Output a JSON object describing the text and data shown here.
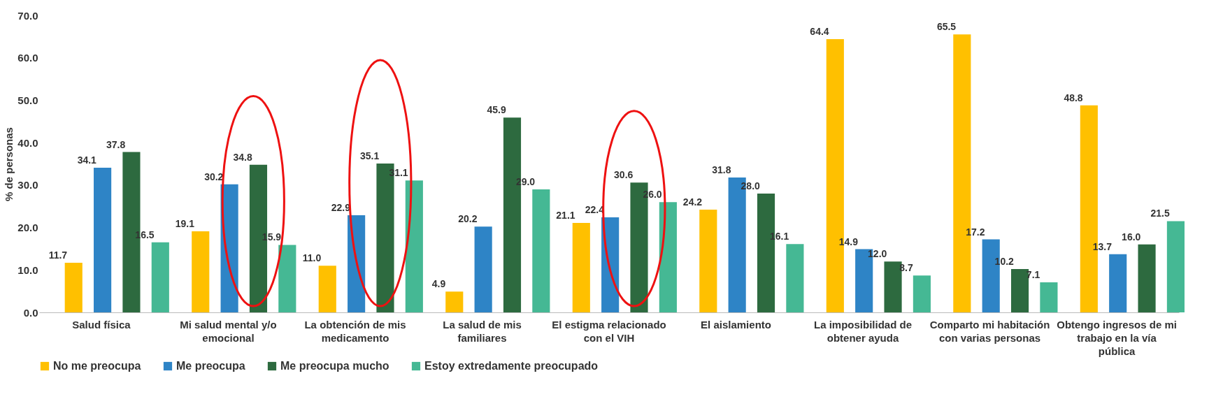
{
  "chart_data": {
    "type": "bar",
    "ylabel": "% de  personas",
    "categories": [
      "Salud física",
      "Mi salud mental y/o emocional",
      "La obtención de mis medicamento",
      "La salud de mis familiares",
      "El estigma relacionado con el VIH",
      "El aislamiento",
      "La imposibilidad de obtener ayuda",
      "Comparto mi habitación con varias personas",
      "Obtengo ingresos de mi trabajo en la vía pública"
    ],
    "series": [
      {
        "name": "No me preocupa",
        "color": "#ffc000",
        "values": [
          11.7,
          19.1,
          11.0,
          4.9,
          21.1,
          24.2,
          64.4,
          65.5,
          48.8
        ],
        "value_labels": [
          "11.7",
          "19.1",
          "11.0",
          "4.9",
          "21.1",
          "24.2",
          "64.4",
          "65.5",
          "48.8"
        ]
      },
      {
        "name": "Me preocupa",
        "color": "#2e84c6",
        "values": [
          34.1,
          30.2,
          22.9,
          20.2,
          22.4,
          31.8,
          14.9,
          17.2,
          13.7
        ],
        "value_labels": [
          "34.1",
          "30.2",
          "22.9",
          "20.2",
          "22.4",
          "31.8",
          "14.9",
          "17.2",
          "13.7"
        ]
      },
      {
        "name": "Me preocupa mucho",
        "color": "#2d6a3f",
        "values": [
          37.8,
          34.8,
          35.1,
          45.9,
          30.6,
          28.0,
          12.0,
          10.2,
          16.0
        ],
        "value_labels": [
          "37.8",
          "34.8",
          "35.1",
          "45.9",
          "30.6",
          "28.0",
          "12.0",
          "10.2",
          "16.0"
        ]
      },
      {
        "name": "Estoy extredamente preocupado",
        "color": "#45b894",
        "values": [
          16.5,
          15.9,
          31.1,
          29.0,
          26.0,
          16.1,
          8.7,
          7.1,
          21.5
        ],
        "value_labels": [
          "16.5",
          "15.9",
          "31.1",
          "29.0",
          "26.0",
          "16.1",
          "8.7",
          "7.1",
          "21.5"
        ]
      }
    ],
    "ylim": [
      0,
      70
    ],
    "yticks": [
      {
        "value": 0,
        "label": "0.0"
      },
      {
        "value": 10,
        "label": "10.0"
      },
      {
        "value": 20,
        "label": "20.0"
      },
      {
        "value": 30,
        "label": "30.0"
      },
      {
        "value": 40,
        "label": "40.0"
      },
      {
        "value": 50,
        "label": "50.0"
      },
      {
        "value": 60,
        "label": "60.0"
      },
      {
        "value": 70,
        "label": "70.0"
      }
    ],
    "grid": false,
    "legend": "bottom"
  }
}
